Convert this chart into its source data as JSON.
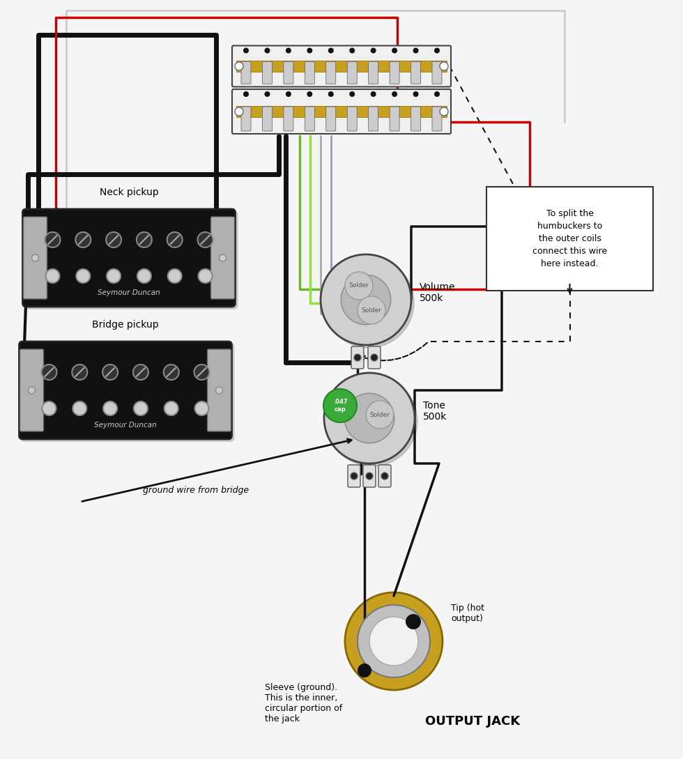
{
  "bg_color": "#f5f5f5",
  "wire_colors": {
    "black": "#111111",
    "red": "#cc0000",
    "white": "#dddddd",
    "green": "#66bb22",
    "light_green": "#99dd44",
    "gray": "#aaaaaa",
    "purple": "#9999bb"
  },
  "note_box_text": "To split the\nhumbuckers to\nthe outer coils\nconnect this wire\nhere instead.",
  "labels": {
    "neck_pickup": "Neck pickup",
    "bridge_pickup": "Bridge pickup",
    "seymour_duncan": "Seymour Duncan",
    "volume": "Volume\n500k",
    "tone": "Tone\n500k",
    "solder": "Solder",
    "cap": ".047\ncap",
    "output_jack": "OUTPUT JACK",
    "tip": "Tip (hot\noutput)",
    "sleeve": "Sleeve (ground).\nThis is the inner,\ncircular portion of\nthe jack",
    "ground_wire": "ground wire from bridge"
  }
}
